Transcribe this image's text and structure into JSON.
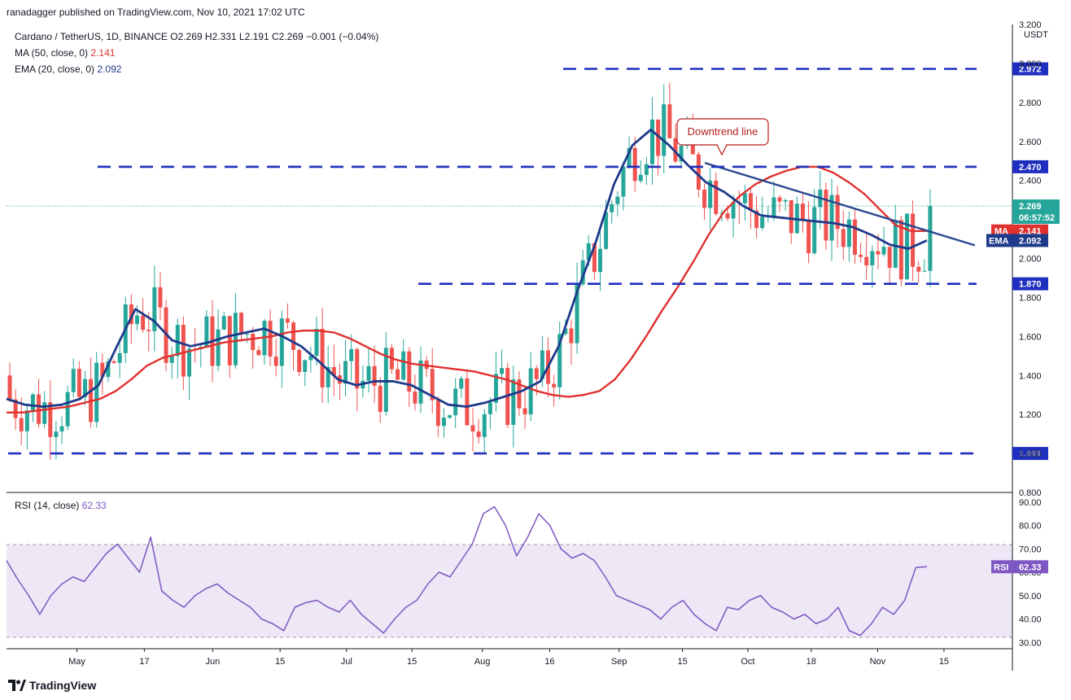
{
  "header": {
    "published": "ranadagger published on TradingView.com, Nov 10, 2021 17:02 UTC"
  },
  "legend": {
    "symbol": "Cardano / TetherUS, 1D, BINANCE",
    "ohlc": "O2.269  H2.331  L2.191  C2.269  −0.001 (−0.04%)",
    "ma_label": "MA (50, close, 0)",
    "ma_value": "2.141",
    "ema_label": "EMA (20, close, 0)",
    "ema_value": "2.092",
    "rsi_label": "RSI (14, close)",
    "rsi_value": "62.33"
  },
  "footer": {
    "brand": "TradingView"
  },
  "colors": {
    "up": "#26a69a",
    "down": "#ef5350",
    "ma": "#e0312f",
    "ema": "#1e3a8a",
    "level": "#1f2fbf",
    "trend": "#2b4790",
    "rsi": "#7e57c2",
    "rsi_band": "#ede7f6"
  },
  "chart_data": [
    {
      "type": "candlestick",
      "currency": "USDT",
      "y_ticks": [
        "3.200",
        "3.000",
        "2.800",
        "2.600",
        "2.400",
        "2.200",
        "2.000",
        "1.800",
        "1.600",
        "1.400",
        "1.200",
        "1.000",
        "0.800"
      ],
      "ylim": [
        0.8,
        3.2
      ],
      "x_ticks": [
        "May",
        "17",
        "Jun",
        "15",
        "Jul",
        "15",
        "Aug",
        "16",
        "Sep",
        "15",
        "Oct",
        "18",
        "Nov",
        "15"
      ],
      "levels": [
        {
          "label": "2.972",
          "value": 2.972
        },
        {
          "label": "2.470",
          "value": 2.47
        },
        {
          "label": "1.870",
          "value": 1.87
        },
        {
          "label": "1.000",
          "value": 1.0
        }
      ],
      "annotation": "Downtrend line",
      "downtrend_line": [
        [
          0.5,
          2.49
        ],
        [
          0.72,
          2.13
        ]
      ],
      "current_price": {
        "value": 2.269,
        "label": "2.269",
        "timer": "06:57:52"
      },
      "ma_tag": {
        "name": "MA",
        "value": 2.141,
        "label": "2.141"
      },
      "ema_tag": {
        "name": "EMA",
        "value": 2.092,
        "label": "2.092"
      },
      "series": [
        {
          "name": "MA",
          "values": [
            1.21,
            1.21,
            1.22,
            1.23,
            1.24,
            1.26,
            1.28,
            1.32,
            1.38,
            1.45,
            1.49,
            1.51,
            1.53,
            1.55,
            1.57,
            1.58,
            1.59,
            1.6,
            1.62,
            1.63,
            1.63,
            1.62,
            1.59,
            1.55,
            1.51,
            1.48,
            1.46,
            1.45,
            1.44,
            1.43,
            1.42,
            1.4,
            1.38,
            1.35,
            1.32,
            1.3,
            1.29,
            1.3,
            1.32,
            1.38,
            1.48,
            1.6,
            1.73,
            1.85,
            1.98,
            2.12,
            2.24,
            2.32,
            2.38,
            2.42,
            2.45,
            2.47,
            2.47,
            2.44,
            2.39,
            2.33,
            2.25,
            2.17,
            2.14,
            2.141
          ]
        },
        {
          "name": "EMA",
          "values": [
            1.28,
            1.25,
            1.24,
            1.25,
            1.28,
            1.35,
            1.55,
            1.74,
            1.68,
            1.58,
            1.55,
            1.57,
            1.6,
            1.62,
            1.64,
            1.6,
            1.55,
            1.47,
            1.38,
            1.35,
            1.37,
            1.37,
            1.35,
            1.3,
            1.25,
            1.24,
            1.26,
            1.29,
            1.32,
            1.37,
            1.55,
            1.83,
            2.08,
            2.38,
            2.58,
            2.66,
            2.58,
            2.48,
            2.39,
            2.34,
            2.27,
            2.22,
            2.21,
            2.2,
            2.19,
            2.18,
            2.16,
            2.12,
            2.07,
            2.05,
            2.092
          ]
        },
        {
          "name": "RSI",
          "values": [
            65,
            57,
            50,
            42,
            50,
            55,
            58,
            56,
            62,
            68,
            72,
            66,
            60,
            75,
            52,
            48,
            45,
            50,
            53,
            55,
            51,
            48,
            45,
            40,
            38,
            35,
            45,
            47,
            48,
            45,
            43,
            48,
            42,
            38,
            34,
            40,
            45,
            48,
            55,
            60,
            58,
            65,
            72,
            85,
            88,
            80,
            67,
            75,
            85,
            80,
            70,
            66,
            68,
            65,
            58,
            50,
            48,
            46,
            44,
            40,
            45,
            48,
            42,
            38,
            35,
            45,
            44,
            48,
            50,
            45,
            43,
            40,
            42,
            38,
            40,
            45,
            35,
            33,
            38,
            45,
            42,
            48,
            62,
            62.33
          ]
        }
      ],
      "rsi": {
        "y_ticks": [
          "90.00",
          "80.00",
          "70.00",
          "60.00",
          "50.00",
          "40.00",
          "30.00"
        ],
        "ylim": [
          28,
          92
        ],
        "band": [
          30,
          70
        ],
        "tag": "RSI",
        "tag_value": "62.33"
      }
    }
  ]
}
